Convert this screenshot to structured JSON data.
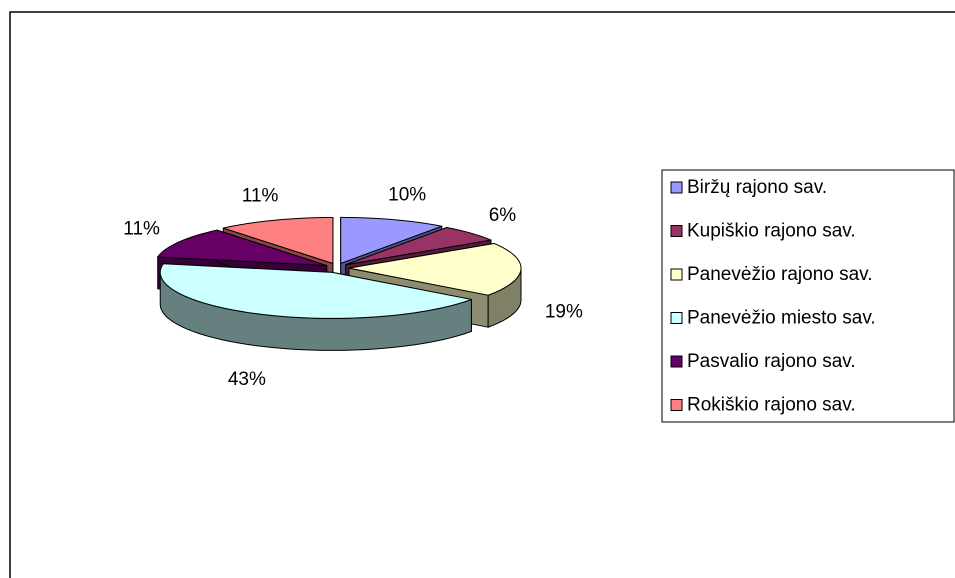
{
  "chart_data": {
    "type": "pie3d",
    "categories": [
      "Biržų rajono sav.",
      "Kupiškio rajono sav.",
      "Panevėžio rajono sav.",
      "Panevėžio miesto sav.",
      "Pasvalio rajono sav.",
      "Rokiškio rajono sav."
    ],
    "values": [
      10,
      6,
      19,
      43,
      11,
      11
    ],
    "value_labels": [
      "10%",
      "6%",
      "19%",
      "43%",
      "11%",
      "11%"
    ],
    "colors": [
      "#9999ff",
      "#993366",
      "#ffffcc",
      "#ccffff",
      "#660066",
      "#ff8080"
    ],
    "legend": "right"
  }
}
